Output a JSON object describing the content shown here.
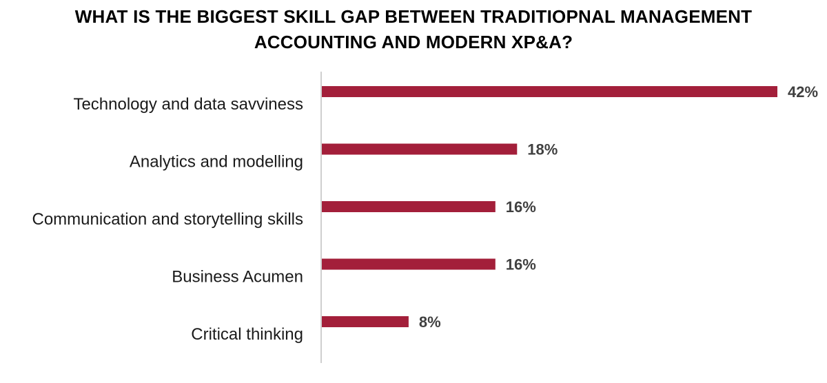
{
  "chart_data": {
    "type": "bar",
    "orientation": "horizontal",
    "title_lines": [
      "WHAT IS THE BIGGEST SKILL GAP BETWEEN TRADITIOPNAL MANAGEMENT",
      "ACCOUNTING AND MODERN XP&A?"
    ],
    "categories": [
      "Technology and data savviness",
      "Analytics and modelling",
      "Communication and storytelling skills",
      "Business Acumen",
      "Critical thinking"
    ],
    "values": [
      42,
      18,
      16,
      16,
      8
    ],
    "value_labels": [
      "42%",
      "18%",
      "16%",
      "16%",
      "8%"
    ],
    "xlim": [
      0,
      42
    ],
    "grid": false,
    "legend": "none",
    "bar_color": "#A31F3A",
    "axis_color": "#BFBFBF"
  }
}
